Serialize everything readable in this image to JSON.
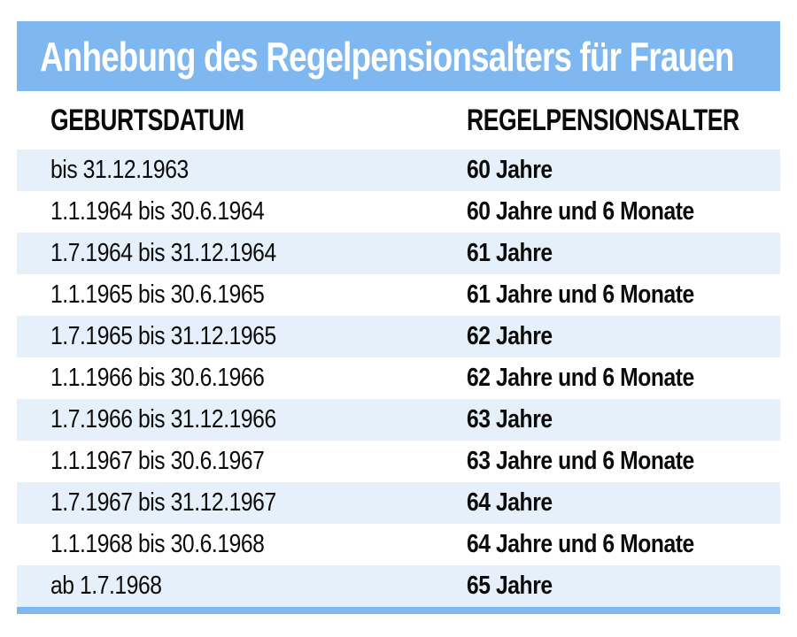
{
  "chart_data": {
    "type": "table",
    "title": "Anhebung des Regelpensionsalters für Frauen",
    "columns": [
      "GEBURTSDATUM",
      "REGELPENSIONSALTER"
    ],
    "rows": [
      [
        "bis 31.12.1963",
        "60 Jahre"
      ],
      [
        "1.1.1964 bis 30.6.1964",
        "60 Jahre und 6 Monate"
      ],
      [
        "1.7.1964 bis 31.12.1964",
        "61 Jahre"
      ],
      [
        "1.1.1965 bis 30.6.1965",
        "61 Jahre und 6 Monate"
      ],
      [
        "1.7.1965 bis 31.12.1965",
        "62 Jahre"
      ],
      [
        "1.1.1966 bis 30.6.1966",
        "62 Jahre und 6 Monate"
      ],
      [
        "1.7.1966 bis 31.12.1966",
        "63 Jahre"
      ],
      [
        "1.1.1967 bis 30.6.1967",
        "63 Jahre und 6 Monate"
      ],
      [
        "1.7.1967 bis 31.12.1967",
        "64 Jahre"
      ],
      [
        "1.1.1968 bis 30.6.1968",
        "64 Jahre und 6 Monate"
      ],
      [
        "ab 1.7.1968",
        "65 Jahre"
      ]
    ],
    "layout": {
      "striped_rows": "odd rows tinted light blue, even rows white",
      "title_bar": "solid light-blue band with white bold condensed text",
      "bottom_rule": "solid light-blue strip under last row"
    }
  },
  "colors": {
    "band_blue": "#7fb8f0",
    "row_tint": "#e6f0fa",
    "body_text": "#0b0b0b",
    "heading_text": "#ffffff",
    "background": "#ffffff"
  }
}
